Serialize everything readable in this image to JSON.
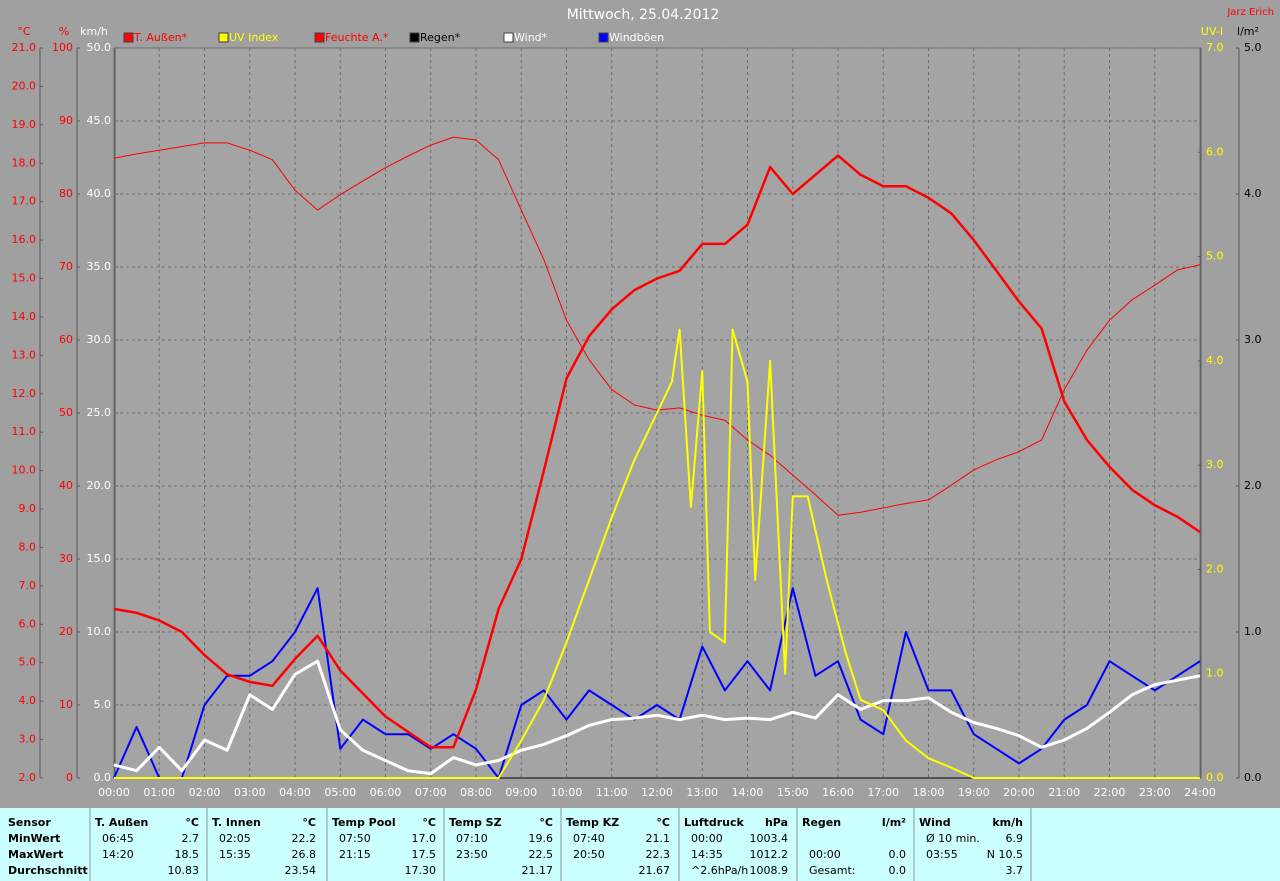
{
  "chart_data": {
    "type": "line",
    "title": "Mittwoch, 25.04.2012",
    "author": "Jarz Erich",
    "x": [
      0,
      0.5,
      1,
      1.5,
      2,
      2.5,
      3,
      3.5,
      4,
      4.5,
      5,
      5.5,
      6,
      6.5,
      7,
      7.5,
      8,
      8.5,
      9,
      9.5,
      10,
      10.5,
      11,
      11.5,
      12,
      12.5,
      13,
      13.5,
      14,
      14.5,
      15,
      15.5,
      16,
      16.5,
      17,
      17.5,
      18,
      18.5,
      19,
      19.5,
      20,
      20.5,
      21,
      21.5,
      22,
      22.5,
      23,
      23.5,
      24
    ],
    "xlim": [
      0,
      24
    ],
    "xticks": [
      {
        "value": 0,
        "label": "00:00"
      },
      {
        "value": 1,
        "label": "01:00"
      },
      {
        "value": 2,
        "label": "02:00"
      },
      {
        "value": 3,
        "label": "03:00"
      },
      {
        "value": 4,
        "label": "04:00"
      },
      {
        "value": 5,
        "label": "05:00"
      },
      {
        "value": 6,
        "label": "06:00"
      },
      {
        "value": 7,
        "label": "07:00"
      },
      {
        "value": 8,
        "label": "08:00"
      },
      {
        "value": 9,
        "label": "09:00"
      },
      {
        "value": 10,
        "label": "10:00"
      },
      {
        "value": 11,
        "label": "11:00"
      },
      {
        "value": 12,
        "label": "12:00"
      },
      {
        "value": 13,
        "label": "13:00"
      },
      {
        "value": 14,
        "label": "14:00"
      },
      {
        "value": 15,
        "label": "15:00"
      },
      {
        "value": 16,
        "label": "16:00"
      },
      {
        "value": 17,
        "label": "17:00"
      },
      {
        "value": 18,
        "label": "18:00"
      },
      {
        "value": 19,
        "label": "19:00"
      },
      {
        "value": 20,
        "label": "20:00"
      },
      {
        "value": 21,
        "label": "21:00"
      },
      {
        "value": 22,
        "label": "22:00"
      },
      {
        "value": 23,
        "label": "23:00"
      },
      {
        "value": 24,
        "label": "24:00"
      }
    ],
    "grid": true,
    "axes": [
      {
        "unit": "°C",
        "color": "#ff0000",
        "side": "left",
        "ylim": [
          2,
          21
        ],
        "yticks": [
          {
            "value": 2,
            "label": "2.0"
          },
          {
            "value": 3,
            "label": "3.0"
          },
          {
            "value": 4,
            "label": "4.0"
          },
          {
            "value": 5,
            "label": "5.0"
          },
          {
            "value": 6,
            "label": "6.0"
          },
          {
            "value": 7,
            "label": "7.0"
          },
          {
            "value": 8,
            "label": "8.0"
          },
          {
            "value": 9,
            "label": "9.0"
          },
          {
            "value": 10,
            "label": "10.0"
          },
          {
            "value": 11,
            "label": "11.0"
          },
          {
            "value": 12,
            "label": "12.0"
          },
          {
            "value": 13,
            "label": "13.0"
          },
          {
            "value": 14,
            "label": "14.0"
          },
          {
            "value": 15,
            "label": "15.0"
          },
          {
            "value": 16,
            "label": "16.0"
          },
          {
            "value": 17,
            "label": "17.0"
          },
          {
            "value": 18,
            "label": "18.0"
          },
          {
            "value": 19,
            "label": "19.0"
          },
          {
            "value": 20,
            "label": "20.0"
          },
          {
            "value": 21,
            "label": "21.0"
          }
        ]
      },
      {
        "unit": "%",
        "color": "#ff0000",
        "side": "left",
        "ylim": [
          0,
          100
        ],
        "yticks": [
          0,
          10,
          20,
          30,
          40,
          50,
          60,
          70,
          80,
          90,
          100
        ]
      },
      {
        "unit": "km/h",
        "color": "#ffffff",
        "side": "left",
        "ylim": [
          0,
          50
        ],
        "yticks": [
          {
            "value": 0,
            "label": "0.0"
          },
          {
            "value": 5,
            "label": "5.0"
          },
          {
            "value": 10,
            "label": "10.0"
          },
          {
            "value": 15,
            "label": "15.0"
          },
          {
            "value": 20,
            "label": "20.0"
          },
          {
            "value": 25,
            "label": "25.0"
          },
          {
            "value": 30,
            "label": "30.0"
          },
          {
            "value": 35,
            "label": "35.0"
          },
          {
            "value": 40,
            "label": "40.0"
          },
          {
            "value": 45,
            "label": "45.0"
          },
          {
            "value": 50,
            "label": "50.0"
          }
        ],
        "grid": true
      },
      {
        "unit": "UV-I",
        "color": "#ffff00",
        "side": "right",
        "ylim": [
          0,
          7
        ],
        "yticks": [
          {
            "value": 0,
            "label": "0.0"
          },
          {
            "value": 1,
            "label": "1.0"
          },
          {
            "value": 2,
            "label": "2.0"
          },
          {
            "value": 3,
            "label": "3.0"
          },
          {
            "value": 4,
            "label": "4.0"
          },
          {
            "value": 5,
            "label": "5.0"
          },
          {
            "value": 6,
            "label": "6.0"
          },
          {
            "value": 7,
            "label": "7.0"
          }
        ]
      },
      {
        "unit": "l/m²",
        "color": "#000000",
        "side": "right",
        "ylim": [
          0,
          5
        ],
        "yticks": [
          {
            "value": 0,
            "label": "0.0"
          },
          {
            "value": 1,
            "label": "1.0"
          },
          {
            "value": 2,
            "label": "2.0"
          },
          {
            "value": 3,
            "label": "3.0"
          },
          {
            "value": 4,
            "label": "4.0"
          },
          {
            "value": 5,
            "label": "5.0"
          }
        ]
      }
    ],
    "series": [
      {
        "name": "T. Außen*",
        "color": "#ff0000",
        "legend_text_color": "#ff0000",
        "axis": 0,
        "values": [
          6.4,
          6.3,
          6.1,
          5.8,
          5.2,
          4.7,
          4.5,
          4.4,
          5.1,
          5.7,
          4.8,
          4.2,
          3.6,
          3.2,
          2.8,
          2.8,
          4.3,
          6.4,
          7.7,
          10.0,
          12.4,
          13.5,
          14.2,
          14.7,
          15.0,
          15.2,
          15.9,
          15.9,
          16.4,
          17.9,
          17.2,
          17.7,
          18.2,
          17.7,
          17.4,
          17.4,
          17.1,
          16.7,
          16.0,
          15.2,
          14.4,
          13.7,
          11.8,
          10.8,
          10.1,
          9.5,
          9.1,
          8.8,
          8.4
        ]
      },
      {
        "name": "UV Index",
        "color": "#ffff00",
        "legend_text_color": "#ffff00",
        "axis": 3,
        "x": [
          0,
          8.5,
          9,
          9.5,
          10,
          10.5,
          11,
          11.5,
          12,
          12.33,
          12.5,
          12.75,
          13,
          13.17,
          13.5,
          13.67,
          14,
          14.17,
          14.5,
          14.83,
          15,
          15.33,
          15.75,
          16.17,
          16.5,
          17,
          17.5,
          18,
          18.5,
          19,
          24
        ],
        "values": [
          0,
          0,
          0.36,
          0.75,
          1.3,
          1.9,
          2.5,
          3.05,
          3.5,
          3.8,
          4.3,
          2.6,
          3.9,
          1.4,
          1.3,
          4.3,
          3.8,
          1.9,
          4.0,
          1.0,
          2.7,
          2.7,
          1.9,
          1.2,
          0.75,
          0.65,
          0.36,
          0.19,
          0.1,
          0,
          0
        ]
      },
      {
        "name": "Feuchte A.*",
        "color": "#ff0000",
        "legend_text_color": "#ff0000",
        "axis": 1,
        "values": [
          84.9,
          85.5,
          86,
          86.5,
          87,
          87,
          86,
          84.7,
          80.5,
          77.8,
          79.9,
          81.8,
          83.6,
          85.2,
          86.7,
          87.8,
          87.4,
          84.7,
          77.8,
          71,
          62.7,
          57.3,
          53.2,
          51.1,
          50.4,
          50.7,
          49.7,
          49,
          46.3,
          44.2,
          41.5,
          38.8,
          36,
          36.4,
          37,
          37.6,
          38.1,
          40.1,
          42.2,
          43.6,
          44.7,
          46.3,
          53.2,
          58.6,
          62.7,
          65.5,
          67.5,
          69.6,
          70.3
        ]
      },
      {
        "name": "Regen*",
        "color": "#000000",
        "legend_text_color": "#000000",
        "axis": 4,
        "x": [
          0,
          24
        ],
        "values": [
          0,
          0
        ]
      },
      {
        "name": "Wind*",
        "color": "#ffffff",
        "legend_text_color": "#ffffff",
        "axis": 2,
        "values": [
          0.9,
          0.5,
          2.1,
          0.5,
          2.6,
          1.9,
          5.7,
          4.7,
          7.1,
          8.0,
          3.3,
          1.9,
          1.2,
          0.5,
          0.3,
          1.4,
          0.9,
          1.2,
          1.9,
          2.3,
          2.9,
          3.6,
          4.0,
          4.1,
          4.3,
          4.0,
          4.3,
          4.0,
          4.1,
          4.0,
          4.5,
          4.1,
          5.7,
          4.7,
          5.3,
          5.3,
          5.5,
          4.5,
          3.8,
          3.4,
          2.9,
          2.1,
          2.6,
          3.4,
          4.5,
          5.7,
          6.4,
          6.7,
          7.0
        ]
      },
      {
        "name": "Windböen",
        "color": "#0000ff",
        "legend_text_color": "#ffffff",
        "axis": 2,
        "values": [
          0,
          3.5,
          0,
          0,
          5,
          7,
          7,
          8,
          10,
          13,
          2,
          4,
          3,
          3,
          2,
          3,
          2,
          0,
          5,
          6,
          4,
          6,
          5,
          4,
          5,
          4,
          9,
          6,
          8,
          6,
          13,
          7,
          8,
          4,
          3,
          10,
          6,
          6,
          3,
          2,
          1,
          2,
          4,
          5,
          8,
          7,
          6,
          7,
          8
        ]
      }
    ]
  },
  "table": {
    "header": "Sensor",
    "row_labels": [
      "MinWert",
      "MaxWert",
      "Durchschnitt"
    ],
    "columns": [
      {
        "name": "T. Außen",
        "unit": "°C",
        "rows": [
          [
            "06:45",
            "2.7"
          ],
          [
            "14:20",
            "18.5"
          ],
          [
            null,
            "10.83"
          ]
        ]
      },
      {
        "name": "T. Innen",
        "unit": "°C",
        "rows": [
          [
            "02:05",
            "22.2"
          ],
          [
            "15:35",
            "26.8"
          ],
          [
            null,
            "23.54"
          ]
        ]
      },
      {
        "name": "Temp Pool",
        "unit": "°C",
        "rows": [
          [
            "07:50",
            "17.0"
          ],
          [
            "21:15",
            "17.5"
          ],
          [
            null,
            "17.30"
          ]
        ]
      },
      {
        "name": "Temp SZ",
        "unit": "°C",
        "rows": [
          [
            "07:10",
            "19.6"
          ],
          [
            "23:50",
            "22.5"
          ],
          [
            null,
            "21.17"
          ]
        ]
      },
      {
        "name": "Temp KZ",
        "unit": "°C",
        "rows": [
          [
            "07:40",
            "21.1"
          ],
          [
            "20:50",
            "22.3"
          ],
          [
            null,
            "21.67"
          ]
        ]
      },
      {
        "name": "Luftdruck",
        "unit": "hPa",
        "rows": [
          [
            "00:00",
            "1003.4"
          ],
          [
            "14:35",
            "1012.2"
          ],
          [
            "^2.6hPa/h",
            "1008.9"
          ]
        ]
      },
      {
        "name": "Regen",
        "unit": "l/m²",
        "rows": [
          [
            null,
            null
          ],
          [
            "00:00",
            "0.0"
          ],
          [
            "Gesamt:",
            "0.0"
          ]
        ]
      },
      {
        "name": "Wind",
        "unit": "km/h",
        "rows": [
          [
            "Ø 10 min.",
            "6.9"
          ],
          [
            "03:55",
            "N 10.5"
          ],
          [
            null,
            "3.7"
          ]
        ]
      }
    ]
  }
}
